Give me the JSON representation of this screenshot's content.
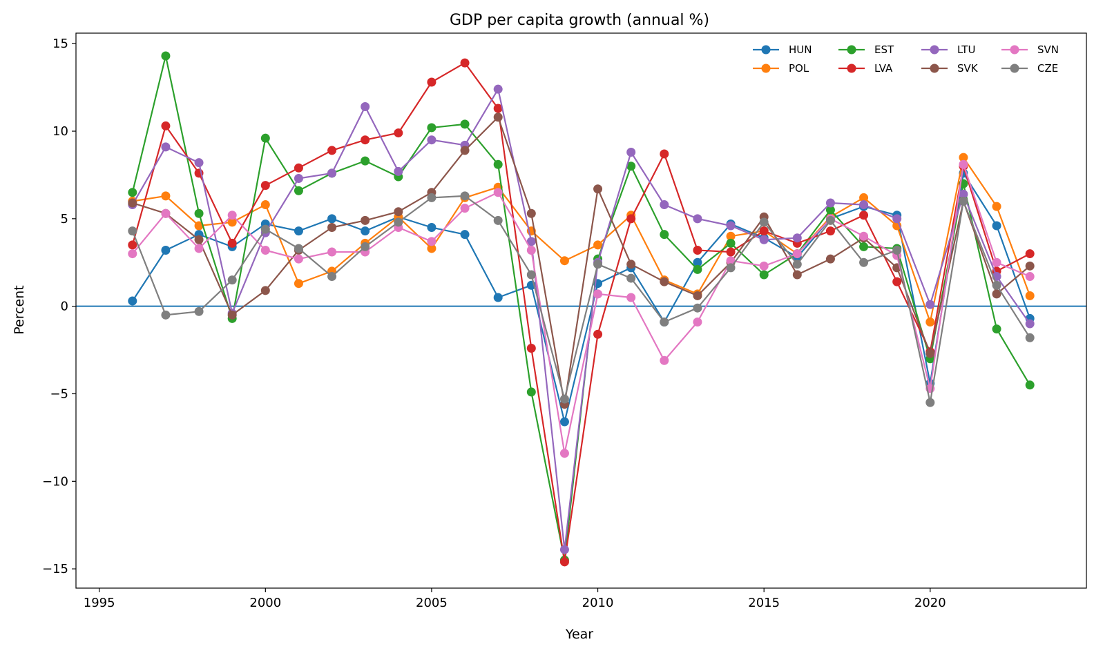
{
  "chart_data": {
    "type": "line",
    "title": "GDP per capita growth (annual %)",
    "xlabel": "Year",
    "ylabel": "Percent",
    "xlim": [
      1994.3,
      2024.7
    ],
    "ylim": [
      -16.1,
      15.6
    ],
    "x_ticks": [
      1995,
      2000,
      2005,
      2010,
      2015,
      2020
    ],
    "y_ticks": [
      15,
      10,
      5,
      0,
      -5,
      -10,
      -15
    ],
    "y_tick_labels": [
      "15",
      "10",
      "5",
      "0",
      "−5",
      "−10",
      "−15"
    ],
    "reference_line": {
      "y": 0,
      "color": "#1f77b4"
    },
    "grid": false,
    "legend": {
      "placement": "top-right",
      "columns": 4
    },
    "x": [
      1996,
      1997,
      1998,
      1999,
      2000,
      2001,
      2002,
      2003,
      2004,
      2005,
      2006,
      2007,
      2008,
      2009,
      2010,
      2011,
      2012,
      2013,
      2014,
      2015,
      2016,
      2017,
      2018,
      2019,
      2020,
      2021,
      2022,
      2023
    ],
    "series": [
      {
        "name": "HUN",
        "color": "#1f77b4",
        "values": [
          0.3,
          3.2,
          4.1,
          3.4,
          4.7,
          4.3,
          5.0,
          4.3,
          5.1,
          4.5,
          4.1,
          0.5,
          1.2,
          -6.6,
          1.3,
          2.2,
          -0.9,
          2.5,
          4.7,
          3.9,
          2.8,
          5.0,
          5.7,
          5.2,
          -4.4,
          7.6,
          4.6,
          -0.7
        ]
      },
      {
        "name": "POL",
        "color": "#ff7f0e",
        "values": [
          6.0,
          6.3,
          4.6,
          4.8,
          5.8,
          1.3,
          2.0,
          3.6,
          5.1,
          3.3,
          6.2,
          6.8,
          4.3,
          2.6,
          3.5,
          5.2,
          1.5,
          0.7,
          4.0,
          4.3,
          3.0,
          5.1,
          6.2,
          4.6,
          -0.9,
          8.5,
          5.7,
          0.6
        ]
      },
      {
        "name": "EST",
        "color": "#2ca02c",
        "values": [
          6.5,
          14.3,
          5.3,
          -0.7,
          9.6,
          6.6,
          7.6,
          8.3,
          7.4,
          10.2,
          10.4,
          8.1,
          -4.9,
          -14.5,
          2.7,
          8.0,
          4.1,
          2.1,
          3.6,
          1.8,
          3.0,
          5.5,
          3.4,
          3.3,
          -3.0,
          7.0,
          -1.3,
          -4.5
        ]
      },
      {
        "name": "LVA",
        "color": "#d62728",
        "values": [
          3.5,
          10.3,
          7.6,
          3.6,
          6.9,
          7.9,
          8.9,
          9.5,
          9.9,
          12.8,
          13.9,
          11.3,
          -2.4,
          -14.6,
          -1.6,
          5.0,
          8.7,
          3.2,
          3.1,
          4.3,
          3.6,
          4.3,
          5.2,
          1.4,
          -2.6,
          8.0,
          2.0,
          3.0
        ]
      },
      {
        "name": "LTU",
        "color": "#9467bd",
        "values": [
          5.8,
          9.1,
          8.2,
          -0.4,
          4.2,
          7.3,
          7.6,
          11.4,
          7.7,
          9.5,
          9.2,
          12.4,
          3.7,
          -13.9,
          2.5,
          8.8,
          5.8,
          5.0,
          4.6,
          3.8,
          3.9,
          5.9,
          5.8,
          5.0,
          0.1,
          6.4,
          1.7,
          -1.0
        ]
      },
      {
        "name": "SVK",
        "color": "#8c564b",
        "values": [
          5.9,
          5.3,
          3.8,
          -0.5,
          0.9,
          3.2,
          4.5,
          4.9,
          5.4,
          6.5,
          8.9,
          10.8,
          5.3,
          -5.6,
          6.7,
          2.4,
          1.4,
          0.6,
          2.5,
          5.1,
          1.8,
          2.7,
          3.9,
          2.2,
          -2.7,
          6.0,
          0.7,
          2.3
        ]
      },
      {
        "name": "SVN",
        "color": "#e377c2",
        "values": [
          3.0,
          5.3,
          3.3,
          5.2,
          3.2,
          2.7,
          3.1,
          3.1,
          4.5,
          3.7,
          5.6,
          6.5,
          3.2,
          -8.4,
          0.7,
          0.5,
          -3.1,
          -0.9,
          2.6,
          2.3,
          3.0,
          5.0,
          4.0,
          2.9,
          -4.7,
          8.1,
          2.5,
          1.7
        ]
      },
      {
        "name": "CZE",
        "color": "#7f7f7f",
        "values": [
          4.3,
          -0.5,
          -0.3,
          1.5,
          4.4,
          3.3,
          1.7,
          3.4,
          4.8,
          6.2,
          6.3,
          4.9,
          1.8,
          -5.3,
          2.4,
          1.6,
          -0.9,
          -0.1,
          2.2,
          4.8,
          2.4,
          4.9,
          2.5,
          3.2,
          -5.5,
          6.0,
          1.2,
          -1.8
        ]
      }
    ]
  }
}
